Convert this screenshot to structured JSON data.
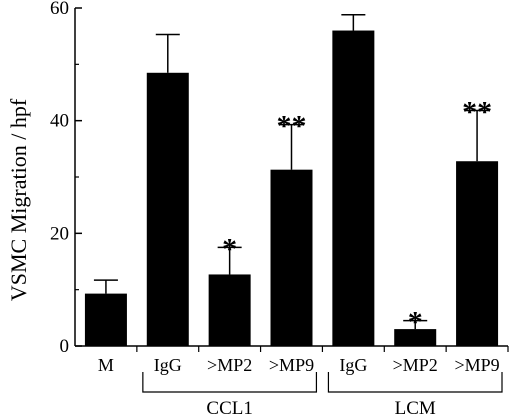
{
  "chart_data": {
    "type": "bar",
    "ylabel": "VSMC Migration / hpf",
    "xlabel": "",
    "ylim": [
      0,
      60
    ],
    "yticks": [
      0,
      20,
      40,
      60
    ],
    "grid": false,
    "categories": [
      "M",
      "IgG",
      ">MP2",
      ">MP9",
      "IgG",
      ">MP2",
      ">MP9"
    ],
    "values": [
      9.3,
      48.5,
      12.7,
      31.3,
      56.0,
      3.0,
      32.8
    ],
    "errors": [
      2.4,
      6.8,
      4.8,
      8.0,
      2.8,
      1.5,
      9.0
    ],
    "significance": [
      "",
      "",
      "*",
      "**",
      "",
      "*",
      "**"
    ],
    "groups": [
      {
        "label": "CCL1",
        "start": 1,
        "end": 3
      },
      {
        "label": "LCM",
        "start": 4,
        "end": 6
      }
    ],
    "bar_color": "#000000"
  }
}
